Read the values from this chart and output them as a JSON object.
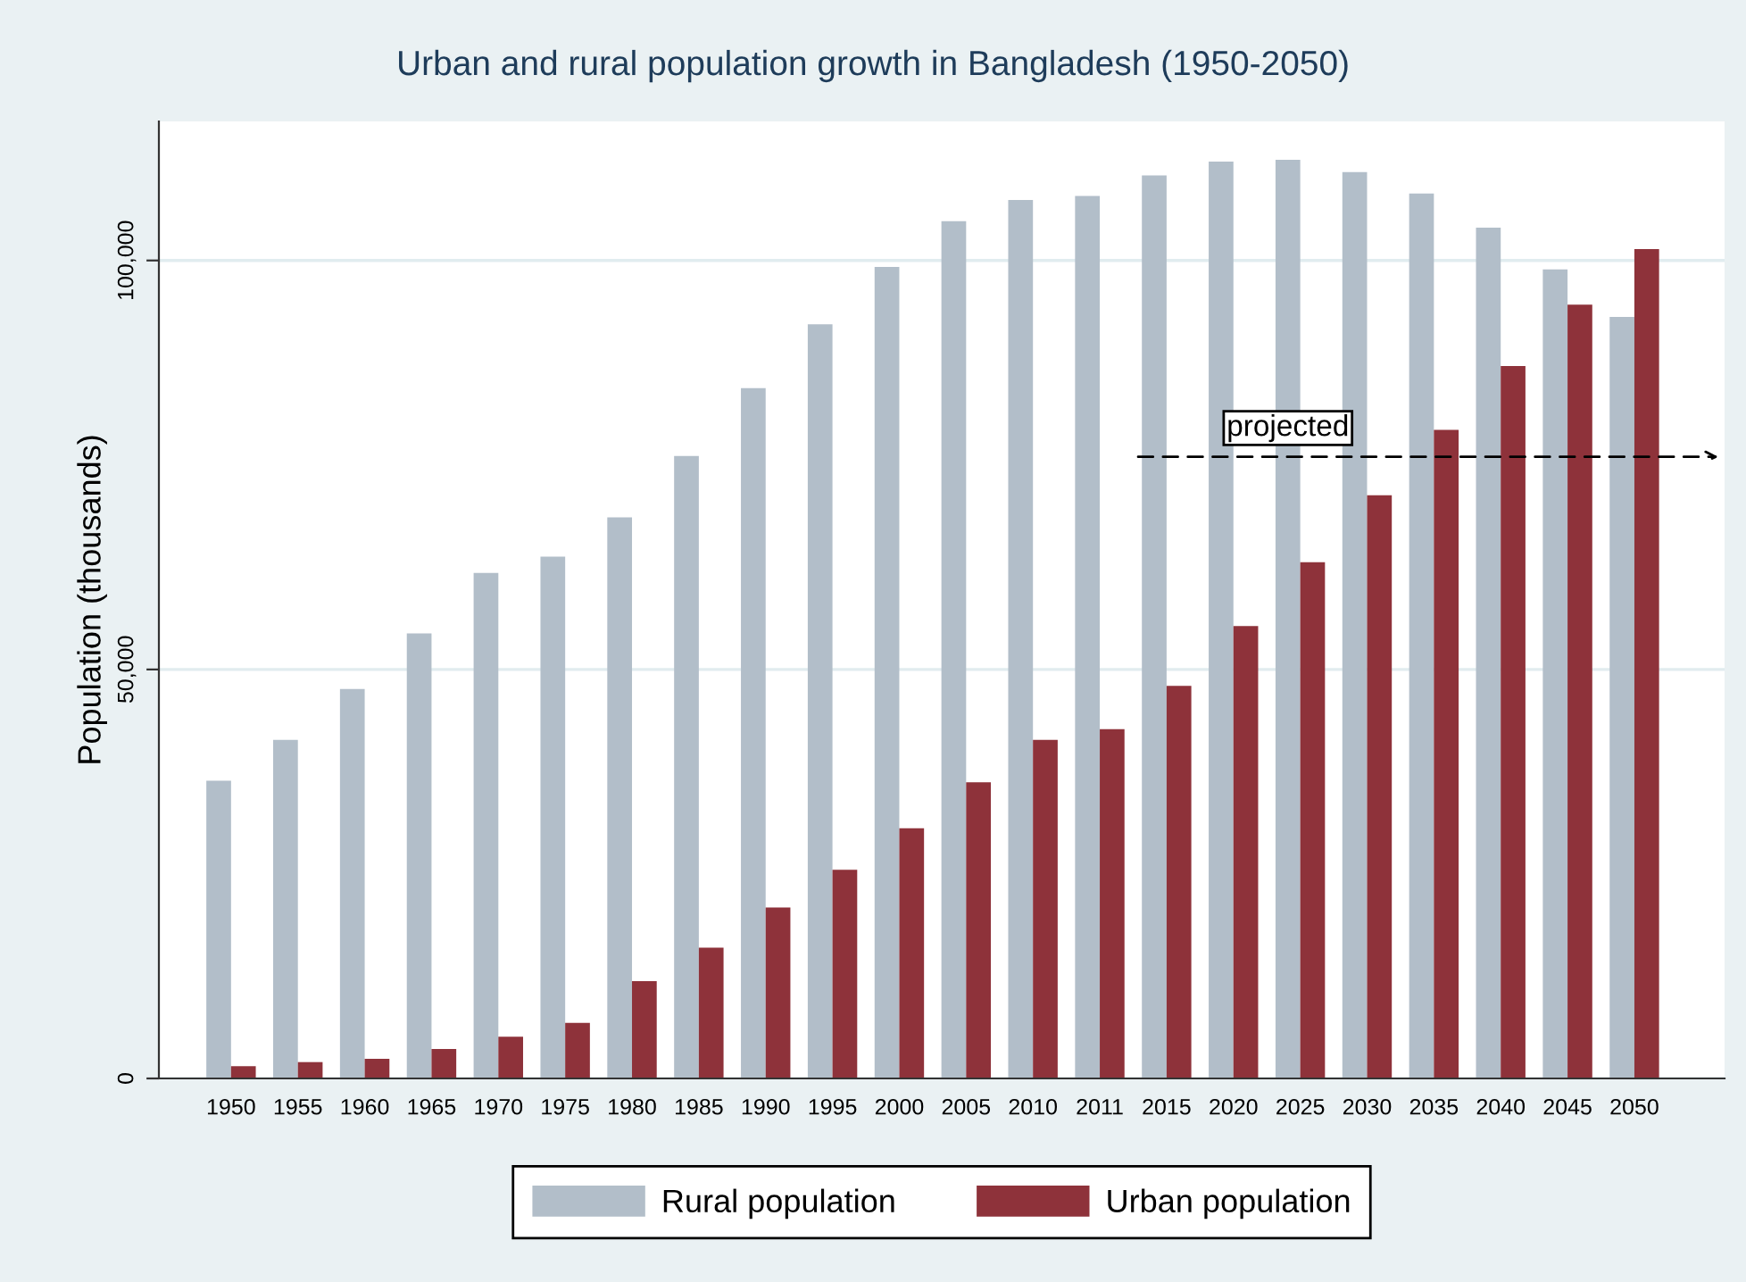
{
  "chart_data": {
    "type": "bar",
    "title": "Urban and rural population growth in Bangladesh (1950-2050)",
    "ylabel": "Population (thousands)",
    "categories": [
      "1950",
      "1955",
      "1960",
      "1965",
      "1970",
      "1975",
      "1980",
      "1985",
      "1990",
      "1995",
      "2000",
      "2005",
      "2010",
      "2011",
      "2015",
      "2020",
      "2025",
      "2030",
      "2035",
      "2040",
      "2045",
      "2050"
    ],
    "series": [
      {
        "name": "Rural population",
        "color": "#b2bec9",
        "values": [
          36400,
          41400,
          47600,
          54400,
          61800,
          63800,
          68600,
          76100,
          84400,
          92200,
          99200,
          104800,
          107400,
          107900,
          110400,
          112100,
          112300,
          110800,
          108200,
          104000,
          98900,
          93100
        ]
      },
      {
        "name": "Urban population",
        "color": "#8e323a",
        "values": [
          1500,
          2000,
          2400,
          3600,
          5100,
          6800,
          11900,
          16000,
          20900,
          25500,
          30600,
          36200,
          41400,
          42700,
          48000,
          55300,
          63100,
          71300,
          79300,
          87100,
          94600,
          101400
        ]
      }
    ],
    "ylim": [
      0,
      117000
    ],
    "yticks": [
      {
        "value": 0,
        "label": "0"
      },
      {
        "value": 50000,
        "label": "50,000"
      },
      {
        "value": 100000,
        "label": "100,000"
      }
    ],
    "grid": "y",
    "legend": "bottom",
    "annotations": [
      {
        "text": "projected",
        "x": "2025",
        "y": 76000
      }
    ]
  }
}
